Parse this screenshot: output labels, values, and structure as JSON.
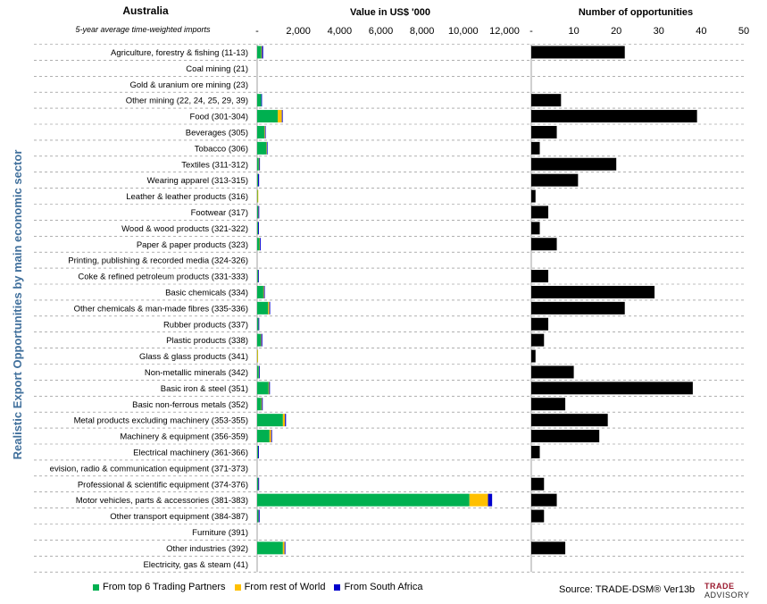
{
  "header": {
    "country": "Australia",
    "subtitle": "5-year average time-weighted imports",
    "value_title": "Value in US$ '000",
    "opportunities_title": "Number of opportunities",
    "ylabel": "Realistic Export Opportunities by main economic sector"
  },
  "legend": {
    "items": [
      {
        "label": "From top 6 Trading Partners",
        "color": "#00b050"
      },
      {
        "label": "From rest of World",
        "color": "#ffc000"
      },
      {
        "label": "From South Africa",
        "color": "#0000cc"
      }
    ]
  },
  "footer": {
    "source": "Source: TRADE-DSM®  Ver13b",
    "logo_line1": "TRADE",
    "logo_line2": "ADVISORY"
  },
  "colors": {
    "top6": "#00b050",
    "rest_of_world": "#ffc000",
    "south_africa": "#0000cc",
    "opportunities": "#000000",
    "gridline": "#808080"
  },
  "chart_data": [
    {
      "type": "bar",
      "orientation": "horizontal",
      "stacked": true,
      "title": "Value in US$ '000",
      "xlim": [
        0,
        12000
      ],
      "x_ticks": [
        "-",
        "2,000",
        "4,000",
        "6,000",
        "8,000",
        "10,000",
        "12,000"
      ],
      "tick_values": [
        0,
        2000,
        4000,
        6000,
        8000,
        10000,
        12000
      ],
      "grid": "horizontal dashed",
      "categories": [
        "Agriculture, forestry & fishing (11-13)",
        "Coal mining (21)",
        "Gold & uranium ore mining (23)",
        "Other mining (22, 24, 25, 29, 39)",
        "Food (301-304)",
        "Beverages (305)",
        "Tobacco (306)",
        "Textiles (311-312)",
        "Wearing apparel (313-315)",
        "Leather & leather products (316)",
        "Footwear (317)",
        "Wood & wood products (321-322)",
        "Paper & paper products (323)",
        "Printing, publishing & recorded media (324-326)",
        "Coke & refined petroleum products (331-333)",
        "Basic chemicals (334)",
        "Other chemicals & man-made fibres (335-336)",
        "Rubber products (337)",
        "Plastic products (338)",
        "Glass & glass products (341)",
        "Non-metallic minerals (342)",
        "Basic iron & steel (351)",
        "Basic non-ferrous metals (352)",
        "Metal products excluding machinery (353-355)",
        "Machinery & equipment (356-359)",
        "Electrical machinery (361-366)",
        "evision, radio & communication equipment (371-373)",
        "Professional & scientific equipment (374-376)",
        "Motor vehicles, parts & accessories (381-383)",
        "Other transport equipment (384-387)",
        "Furniture (391)",
        "Other industries (392)",
        "Electricity, gas & steam (41)"
      ],
      "series": [
        {
          "name": "From top 6 Trading Partners",
          "values": [
            200,
            0,
            0,
            200,
            1000,
            350,
            450,
            80,
            40,
            20,
            50,
            40,
            110,
            0,
            40,
            300,
            530,
            60,
            180,
            10,
            80,
            550,
            200,
            1250,
            600,
            40,
            0,
            50,
            10300,
            60,
            0,
            1250,
            0
          ]
        },
        {
          "name": "From rest of World",
          "values": [
            30,
            0,
            0,
            0,
            200,
            30,
            20,
            20,
            5,
            10,
            10,
            5,
            20,
            0,
            5,
            30,
            60,
            5,
            20,
            5,
            10,
            30,
            30,
            100,
            80,
            5,
            0,
            5,
            900,
            10,
            0,
            80,
            0
          ]
        },
        {
          "name": "From South Africa",
          "values": [
            60,
            0,
            0,
            30,
            40,
            30,
            10,
            20,
            50,
            0,
            40,
            40,
            40,
            0,
            20,
            40,
            40,
            10,
            50,
            0,
            30,
            40,
            40,
            50,
            40,
            40,
            0,
            40,
            200,
            50,
            0,
            40,
            0
          ]
        }
      ]
    },
    {
      "type": "bar",
      "orientation": "horizontal",
      "title": "Number of opportunities",
      "xlim": [
        0,
        50
      ],
      "x_ticks": [
        "-",
        "10",
        "20",
        "30",
        "40",
        "50"
      ],
      "tick_values": [
        0,
        10,
        20,
        30,
        40,
        50
      ],
      "grid": "horizontal dashed",
      "series": [
        {
          "name": "Number of opportunities",
          "values": [
            22,
            0,
            0,
            7,
            39,
            6,
            2,
            20,
            11,
            1,
            4,
            2,
            6,
            0,
            4,
            29,
            22,
            4,
            3,
            1,
            10,
            38,
            8,
            18,
            16,
            2,
            0,
            3,
            6,
            3,
            0,
            8,
            0
          ]
        }
      ]
    }
  ]
}
